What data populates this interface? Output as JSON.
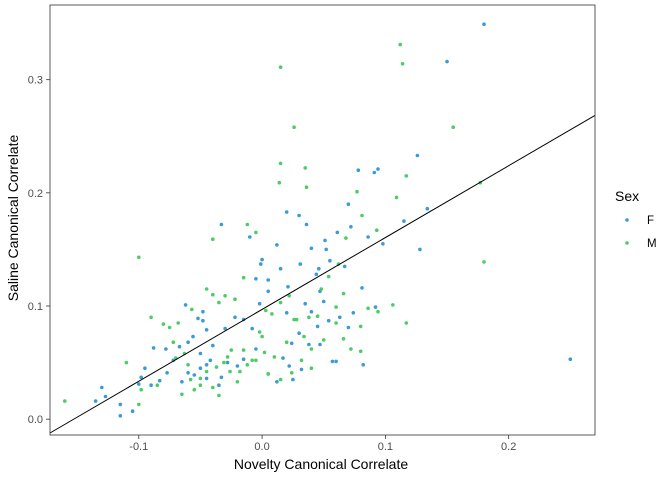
{
  "chart_data": {
    "type": "scatter",
    "title": "",
    "xlabel": "Novelty Canonical Correlate",
    "ylabel": "Saline Canonical Correlate",
    "xlim": [
      -0.172,
      0.27
    ],
    "ylim": [
      -0.014,
      0.366
    ],
    "xticks": [
      -0.1,
      0.0,
      0.1,
      0.2
    ],
    "xtick_labels": [
      "-0.1",
      "0.0",
      "0.1",
      "0.2"
    ],
    "yticks": [
      0.0,
      0.1,
      0.2,
      0.3
    ],
    "ytick_labels": [
      "0.0",
      "0.1",
      "0.2",
      "0.3"
    ],
    "grid": false,
    "legend": {
      "title": "Sex",
      "position": "right"
    },
    "fit_line": {
      "intercept": 0.097,
      "slope": 0.635
    },
    "series": [
      {
        "name": "F",
        "color": "#3a9bd5",
        "points": [
          [
            0.18,
            0.349
          ],
          [
            0.15,
            0.316
          ],
          [
            0.25,
            0.053
          ],
          [
            0.134,
            0.186
          ],
          [
            0.126,
            0.233
          ],
          [
            0.098,
            0.155
          ],
          [
            0.128,
            0.15
          ],
          [
            0.115,
            0.175
          ],
          [
            0.094,
            0.221
          ],
          [
            0.091,
            0.218
          ],
          [
            0.078,
            0.22
          ],
          [
            0.07,
            0.19
          ],
          [
            0.086,
            0.161
          ],
          [
            0.072,
            0.17
          ],
          [
            0.061,
            0.165
          ],
          [
            0.051,
            0.158
          ],
          [
            0.052,
            0.15
          ],
          [
            0.055,
            0.14
          ],
          [
            0.067,
            0.135
          ],
          [
            0.04,
            0.151
          ],
          [
            0.036,
            0.172
          ],
          [
            0.02,
            0.183
          ],
          [
            0.03,
            0.18
          ],
          [
            0.046,
            0.133
          ],
          [
            0.031,
            0.137
          ],
          [
            0.012,
            0.154
          ],
          [
            0.0,
            0.141
          ],
          [
            -0.005,
            0.124
          ],
          [
            -0.001,
            0.137
          ],
          [
            0.015,
            0.133
          ],
          [
            0.021,
            0.117
          ],
          [
            0.005,
            0.113
          ],
          [
            -0.002,
            0.102
          ],
          [
            0.047,
            0.113
          ],
          [
            0.035,
            0.102
          ],
          [
            0.05,
            0.104
          ],
          [
            0.081,
            0.116
          ],
          [
            0.092,
            0.099
          ],
          [
            0.074,
            0.094
          ],
          [
            0.063,
            0.09
          ],
          [
            0.054,
            0.087
          ],
          [
            0.045,
            0.082
          ],
          [
            0.04,
            0.095
          ],
          [
            0.03,
            0.076
          ],
          [
            0.024,
            0.067
          ],
          [
            0.017,
            0.054
          ],
          [
            0.022,
            0.047
          ],
          [
            0.032,
            0.044
          ],
          [
            0.047,
            0.066
          ],
          [
            0.057,
            0.051
          ],
          [
            0.082,
            0.048
          ],
          [
            0.06,
            0.051
          ],
          [
            -0.008,
            0.08
          ],
          [
            -0.015,
            0.088
          ],
          [
            -0.022,
            0.09
          ],
          [
            -0.03,
            0.08
          ],
          [
            -0.01,
            0.161
          ],
          [
            -0.033,
            0.172
          ],
          [
            -0.005,
            0.062
          ],
          [
            -0.015,
            0.053
          ],
          [
            -0.02,
            0.047
          ],
          [
            -0.028,
            0.05
          ],
          [
            -0.033,
            0.037
          ],
          [
            -0.04,
            0.065
          ],
          [
            -0.045,
            0.079
          ],
          [
            -0.048,
            0.087
          ],
          [
            -0.052,
            0.089
          ],
          [
            -0.048,
            0.095
          ],
          [
            -0.062,
            0.101
          ],
          [
            -0.056,
            0.073
          ],
          [
            -0.06,
            0.068
          ],
          [
            -0.067,
            0.064
          ],
          [
            -0.05,
            0.058
          ],
          [
            -0.042,
            0.052
          ],
          [
            -0.045,
            0.048
          ],
          [
            -0.05,
            0.045
          ],
          [
            -0.055,
            0.039
          ],
          [
            -0.06,
            0.041
          ],
          [
            -0.065,
            0.033
          ],
          [
            -0.078,
            0.062
          ],
          [
            -0.088,
            0.063
          ],
          [
            -0.077,
            0.041
          ],
          [
            -0.083,
            0.034
          ],
          [
            -0.09,
            0.03
          ],
          [
            -0.1,
            0.031
          ],
          [
            -0.098,
            0.037
          ],
          [
            -0.105,
            0.007
          ],
          [
            -0.115,
            0.013
          ],
          [
            -0.115,
            0.003
          ],
          [
            -0.13,
            0.028
          ],
          [
            -0.127,
            0.02
          ],
          [
            -0.135,
            0.016
          ],
          [
            -0.095,
            0.045
          ],
          [
            -0.072,
            0.052
          ],
          [
            -0.045,
            0.036
          ],
          [
            0.012,
            0.033
          ],
          [
            0.005,
            0.04
          ],
          [
            -0.035,
            0.03
          ],
          [
            0.038,
            0.066
          ],
          [
            0.07,
            0.081
          ],
          [
            0.025,
            0.035
          ],
          [
            0.02,
            0.094
          ],
          [
            0.044,
            0.128
          ],
          [
            0.005,
            0.123
          ]
        ]
      },
      {
        "name": "M",
        "color": "#4ccd64",
        "points": [
          [
            0.112,
            0.331
          ],
          [
            0.114,
            0.314
          ],
          [
            0.155,
            0.258
          ],
          [
            0.026,
            0.258
          ],
          [
            0.015,
            0.311
          ],
          [
            0.177,
            0.209
          ],
          [
            0.18,
            0.139
          ],
          [
            0.117,
            0.215
          ],
          [
            0.109,
            0.196
          ],
          [
            0.117,
            0.085
          ],
          [
            0.015,
            0.226
          ],
          [
            0.035,
            0.222
          ],
          [
            0.014,
            0.209
          ],
          [
            0.036,
            0.205
          ],
          [
            0.077,
            0.201
          ],
          [
            0.081,
            0.18
          ],
          [
            0.093,
            0.167
          ],
          [
            0.068,
            0.16
          ],
          [
            0.062,
            0.137
          ],
          [
            0.054,
            0.126
          ],
          [
            -0.012,
            0.172
          ],
          [
            -0.005,
            0.165
          ],
          [
            -0.04,
            0.159
          ],
          [
            -0.1,
            0.143
          ],
          [
            -0.015,
            0.125
          ],
          [
            -0.03,
            0.109
          ],
          [
            -0.035,
            0.103
          ],
          [
            -0.04,
            0.11
          ],
          [
            -0.057,
            0.097
          ],
          [
            -0.068,
            0.085
          ],
          [
            -0.08,
            0.084
          ],
          [
            -0.072,
            0.068
          ],
          [
            -0.063,
            0.058
          ],
          [
            -0.06,
            0.048
          ],
          [
            -0.037,
            0.046
          ],
          [
            -0.026,
            0.042
          ],
          [
            -0.018,
            0.042
          ],
          [
            -0.012,
            0.048
          ],
          [
            -0.008,
            0.052
          ],
          [
            0.002,
            0.059
          ],
          [
            0.008,
            0.093
          ],
          [
            0.015,
            0.103
          ],
          [
            0.022,
            0.109
          ],
          [
            0.028,
            0.088
          ],
          [
            0.034,
            0.073
          ],
          [
            0.04,
            0.062
          ],
          [
            0.06,
            0.099
          ],
          [
            0.066,
            0.111
          ],
          [
            0.08,
            0.082
          ],
          [
            0.086,
            0.098
          ],
          [
            0.094,
            0.095
          ],
          [
            0.106,
            0.101
          ],
          [
            0.066,
            0.071
          ],
          [
            0.05,
            0.07
          ],
          [
            0.032,
            0.052
          ],
          [
            0.024,
            0.041
          ],
          [
            0.015,
            0.035
          ],
          [
            0.005,
            0.04
          ],
          [
            -0.005,
            0.052
          ],
          [
            -0.015,
            0.061
          ],
          [
            -0.025,
            0.061
          ],
          [
            -0.031,
            0.05
          ],
          [
            -0.045,
            0.042
          ],
          [
            -0.05,
            0.036
          ],
          [
            -0.05,
            0.03
          ],
          [
            -0.055,
            0.026
          ],
          [
            -0.035,
            0.021
          ],
          [
            -0.04,
            0.028
          ],
          [
            -0.085,
            0.03
          ],
          [
            -0.098,
            0.026
          ],
          [
            -0.1,
            0.013
          ],
          [
            -0.11,
            0.05
          ],
          [
            -0.16,
            0.016
          ],
          [
            -0.075,
            0.081
          ],
          [
            -0.09,
            0.09
          ],
          [
            -0.045,
            0.115
          ],
          [
            -0.022,
            0.106
          ],
          [
            0.003,
            0.096
          ],
          [
            0.045,
            0.091
          ],
          [
            0.026,
            0.088
          ],
          [
            0.06,
            0.085
          ],
          [
            0.072,
            0.062
          ],
          [
            0.08,
            0.06
          ],
          [
            0.04,
            0.045
          ],
          [
            0.038,
            0.09
          ],
          [
            -0.002,
            0.077
          ],
          [
            -0.028,
            0.055
          ],
          [
            -0.058,
            0.035
          ],
          [
            -0.07,
            0.054
          ],
          [
            0.01,
            0.055
          ],
          [
            0.02,
            0.068
          ],
          [
            0.048,
            0.115
          ],
          [
            -0.065,
            0.022
          ],
          [
            -0.02,
            0.033
          ],
          [
            0.0,
            0.073
          ]
        ]
      }
    ]
  }
}
